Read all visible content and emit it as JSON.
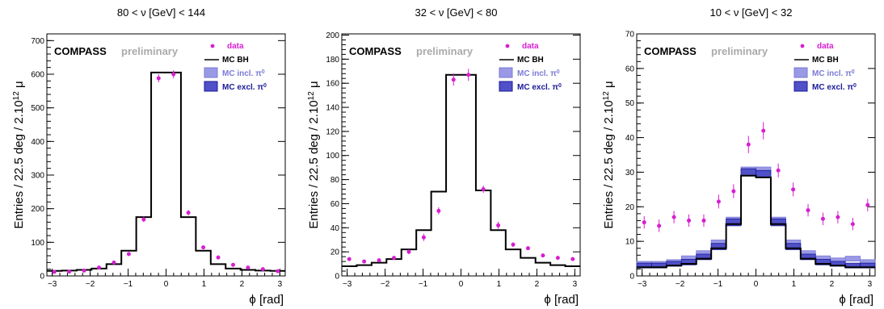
{
  "chart_data": [
    {
      "type": "histogram",
      "title": "80 < ν [GeV] < 144",
      "xlabel": "ϕ [rad]",
      "ylabel": "Entries / 22.5 deg / 2.10",
      "ylabel_sup": "12",
      "ylabel_tail": " μ",
      "xlim": [
        -3.1416,
        3.1416
      ],
      "ylim": [
        0,
        720
      ],
      "xticks": [
        -3,
        -2,
        -1,
        0,
        1,
        2,
        3
      ],
      "yticks": [
        0,
        100,
        200,
        300,
        400,
        500,
        600,
        700
      ],
      "legend": {
        "placement": "top-right",
        "entries": [
          "data",
          "MC BH",
          "MC incl. π",
          "MC excl. π"
        ],
        "sup": "0"
      },
      "banner": {
        "experiment": "COMPASS",
        "status": "preliminary"
      },
      "bin_edges": [
        -3.1416,
        -2.7489,
        -2.3562,
        -1.9635,
        -1.5708,
        -1.1781,
        -0.7854,
        -0.3927,
        0,
        0.3927,
        0.7854,
        1.1781,
        1.5708,
        1.9635,
        2.3562,
        2.7489,
        3.1416
      ],
      "series": [
        {
          "name": "MC BH",
          "kind": "step",
          "values": [
            15,
            16,
            18,
            22,
            35,
            75,
            175,
            605,
            605,
            175,
            75,
            35,
            22,
            18,
            16,
            15
          ]
        },
        {
          "name": "MC incl. π",
          "kind": "band",
          "values": [],
          "errors": []
        },
        {
          "name": "MC excl. π",
          "kind": "band",
          "values": [],
          "errors": []
        },
        {
          "name": "data",
          "kind": "points",
          "x": [
            -2.9452,
            -2.5525,
            -2.1598,
            -1.7671,
            -1.3744,
            -0.9817,
            -0.589,
            -0.1963,
            0.1963,
            0.589,
            0.9817,
            1.3744,
            1.7671,
            2.1598,
            2.5525,
            2.9452
          ],
          "values": [
            12,
            13,
            16,
            25,
            40,
            65,
            168,
            588,
            600,
            188,
            85,
            55,
            33,
            25,
            20,
            14
          ],
          "errors": [
            3,
            3,
            3,
            4,
            5,
            6,
            8,
            12,
            12,
            8,
            6,
            5,
            4,
            4,
            3,
            3
          ]
        }
      ]
    },
    {
      "type": "histogram",
      "title": "32 < ν [GeV] < 80",
      "xlabel": "ϕ [rad]",
      "ylabel": "Entries / 22.5 deg / 2.10",
      "ylabel_sup": "12",
      "ylabel_tail": " μ",
      "xlim": [
        -3.1416,
        3.1416
      ],
      "ylim": [
        0,
        201
      ],
      "xticks": [
        -3,
        -2,
        -1,
        0,
        1,
        2,
        3
      ],
      "yticks": [
        0,
        20,
        40,
        60,
        80,
        100,
        120,
        140,
        160,
        180,
        200
      ],
      "legend": {
        "placement": "top-right",
        "entries": [
          "data",
          "MC BH",
          "MC incl. π",
          "MC excl. π"
        ],
        "sup": "0"
      },
      "banner": {
        "experiment": "COMPASS",
        "status": "preliminary"
      },
      "bin_edges": [
        -3.1416,
        -2.7489,
        -2.3562,
        -1.9635,
        -1.5708,
        -1.1781,
        -0.7854,
        -0.3927,
        0,
        0.3927,
        0.7854,
        1.1781,
        1.5708,
        1.9635,
        2.3562,
        2.7489,
        3.1416
      ],
      "series": [
        {
          "name": "MC BH",
          "kind": "step",
          "values": [
            8,
            9,
            11,
            14,
            22,
            38,
            70,
            167,
            167,
            71,
            38,
            22,
            15,
            11,
            9,
            8
          ]
        },
        {
          "name": "MC incl. π",
          "kind": "band",
          "values": [],
          "errors": []
        },
        {
          "name": "MC excl. π",
          "kind": "band",
          "values": [],
          "errors": []
        },
        {
          "name": "data",
          "kind": "points",
          "x": [
            -2.9452,
            -2.5525,
            -2.1598,
            -1.7671,
            -1.3744,
            -0.9817,
            -0.589,
            -0.1963,
            0.1963,
            0.589,
            0.9817,
            1.3744,
            1.7671,
            2.1598,
            2.5525,
            2.9452
          ],
          "values": [
            14,
            12,
            13,
            15,
            20,
            32,
            54,
            163,
            167,
            72,
            42,
            26,
            23,
            17,
            15,
            14
          ],
          "errors": [
            1.5,
            1.5,
            1.5,
            1.5,
            2,
            3,
            3,
            5,
            5,
            3,
            3,
            2,
            1.5,
            1.5,
            1.5,
            1.5
          ]
        }
      ]
    },
    {
      "type": "histogram",
      "title": "10 < ν [GeV] < 32",
      "xlabel": "ϕ [rad]",
      "ylabel": "Entries / 22.5 deg / 2.10",
      "ylabel_sup": "12",
      "ylabel_tail": " μ",
      "xlim": [
        -3.1416,
        3.1416
      ],
      "ylim": [
        0,
        70
      ],
      "xticks": [
        -3,
        -2,
        -1,
        0,
        1,
        2,
        3
      ],
      "yticks": [
        0,
        10,
        20,
        30,
        40,
        50,
        60,
        70
      ],
      "legend": {
        "placement": "top-right",
        "entries": [
          "data",
          "MC BH",
          "MC incl. π",
          "MC excl. π"
        ],
        "sup": "0"
      },
      "banner": {
        "experiment": "COMPASS",
        "status": "preliminary"
      },
      "bin_edges": [
        -3.1416,
        -2.7489,
        -2.3562,
        -1.9635,
        -1.5708,
        -1.1781,
        -0.7854,
        -0.3927,
        0,
        0.3927,
        0.7854,
        1.1781,
        1.5708,
        1.9635,
        2.3562,
        2.7489,
        3.1416
      ],
      "series": [
        {
          "name": "MC BH",
          "kind": "step",
          "values": [
            2.5,
            2.5,
            3,
            3.5,
            5,
            8,
            15,
            29,
            28.5,
            15,
            8,
            5,
            3.5,
            3,
            2.5,
            2.5
          ]
        },
        {
          "name": "MC incl. π",
          "kind": "band",
          "values": [
            3.5,
            3.5,
            4,
            5,
            6.5,
            9.5,
            16,
            30.5,
            30.5,
            16,
            9.5,
            6.5,
            5,
            4.5,
            5,
            4
          ],
          "errors": [
            0.7,
            0.7,
            0.7,
            0.8,
            0.8,
            0.9,
            1,
            1,
            1,
            1,
            0.9,
            0.8,
            0.8,
            0.7,
            0.7,
            0.7
          ]
        },
        {
          "name": "MC excl. π",
          "kind": "band",
          "values": [
            3,
            3,
            3.5,
            4,
            5.5,
            8.5,
            15.5,
            30,
            29.5,
            15.5,
            8.5,
            5.5,
            4,
            3.5,
            3,
            3
          ],
          "errors": [
            0.7,
            0.7,
            0.7,
            0.8,
            0.8,
            0.9,
            1,
            1,
            1,
            1,
            0.9,
            0.8,
            0.8,
            0.7,
            0.7,
            0.7
          ]
        },
        {
          "name": "data",
          "kind": "points",
          "x": [
            -2.9452,
            -2.5525,
            -2.1598,
            -1.7671,
            -1.3744,
            -0.9817,
            -0.589,
            -0.1963,
            0.1963,
            0.589,
            0.9817,
            1.3744,
            1.7671,
            2.1598,
            2.5525,
            2.9452
          ],
          "values": [
            15.5,
            14.5,
            17,
            16,
            16,
            21.5,
            24.5,
            38,
            42,
            30.5,
            25,
            19,
            16.5,
            17,
            15,
            20.5
          ],
          "errors": [
            1.8,
            1.8,
            1.8,
            1.8,
            1.8,
            2,
            2,
            2.5,
            2.5,
            2,
            2,
            1.8,
            1.8,
            1.8,
            1.8,
            1.8
          ]
        }
      ]
    }
  ],
  "colors": {
    "data": "#d81ed1",
    "mc_bh": "#000000",
    "mc_incl_fill": "#9999e6",
    "mc_incl_line": "#7a7ad6",
    "mc_excl_fill": "#5050c8",
    "mc_excl_line": "#1a1a99",
    "preliminary": "#aaaaaa"
  }
}
